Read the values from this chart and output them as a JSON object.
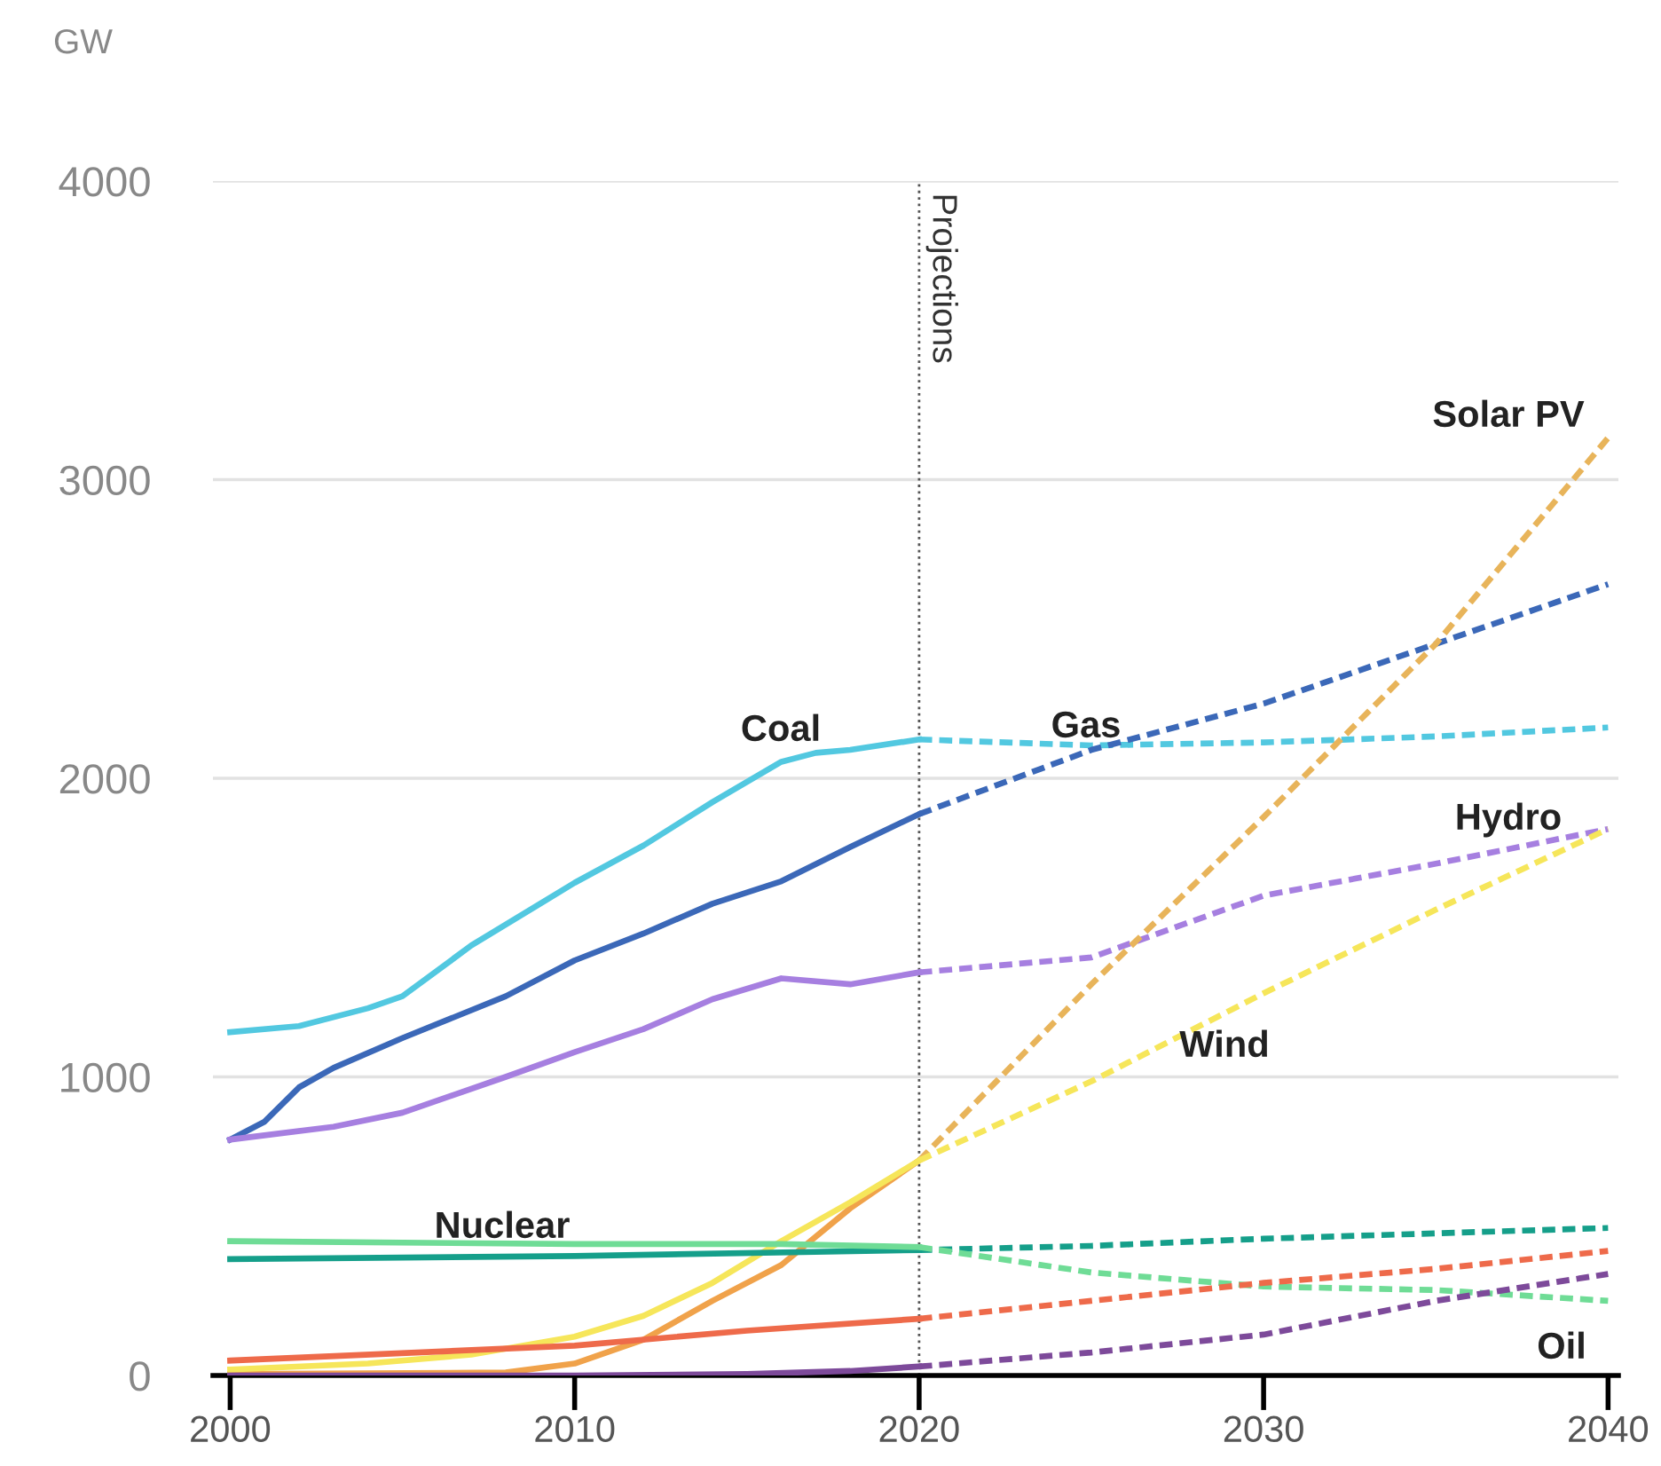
{
  "chart_data": {
    "type": "line",
    "ylabel": "GW",
    "xlim": [
      1999.5,
      2040.3
    ],
    "ylim": [
      0,
      4000
    ],
    "xticks": [
      2000,
      2010,
      2020,
      2030,
      2040
    ],
    "yticks": [
      0,
      1000,
      2000,
      3000,
      4000
    ],
    "grid": "y",
    "legend": false,
    "marker": "none",
    "ref_lines": [
      {
        "axis": "x",
        "value": 2020,
        "label": "Projections",
        "color": "#555555",
        "line_style": "dotted"
      }
    ],
    "series": [
      {
        "name": "Coal",
        "color": "#52c8e0",
        "line_style": "solid",
        "x": [
          2000,
          2002,
          2004,
          2005,
          2007,
          2010,
          2012,
          2014,
          2016,
          2017,
          2018,
          2020
        ],
        "values": [
          1150,
          1170,
          1230,
          1270,
          1440,
          1650,
          1775,
          1920,
          2055,
          2085,
          2095,
          2130
        ]
      },
      {
        "color": "#52c8e0",
        "line_style": "dashed",
        "x": [
          2020,
          2025,
          2030,
          2035,
          2040
        ],
        "values": [
          2130,
          2110,
          2120,
          2140,
          2170
        ]
      },
      {
        "color": "#3b68b8",
        "line_style": "solid",
        "x": [
          2000,
          2001,
          2002,
          2003,
          2005,
          2008,
          2010,
          2012,
          2014,
          2016,
          2018,
          2020
        ],
        "values": [
          790,
          850,
          965,
          1030,
          1130,
          1270,
          1390,
          1480,
          1580,
          1655,
          1770,
          1880
        ]
      },
      {
        "name": "Gas",
        "color": "#3b68b8",
        "line_style": "dashed",
        "x": [
          2020,
          2025,
          2030,
          2035,
          2040
        ],
        "values": [
          1880,
          2095,
          2250,
          2450,
          2650
        ]
      },
      {
        "color": "#a67fe0",
        "line_style": "solid",
        "x": [
          2000,
          2003,
          2005,
          2008,
          2010,
          2012,
          2014,
          2016,
          2018,
          2020
        ],
        "values": [
          790,
          833,
          880,
          1000,
          1083,
          1160,
          1260,
          1330,
          1310,
          1350
        ]
      },
      {
        "name": "Hydro",
        "color": "#a67fe0",
        "line_style": "dashed",
        "x": [
          2020,
          2025,
          2030,
          2035,
          2040
        ],
        "values": [
          1350,
          1400,
          1607,
          1714,
          1830
        ]
      },
      {
        "color": "#f0a24a",
        "line_style": "solid",
        "x": [
          2000,
          2008,
          2010,
          2012,
          2014,
          2016,
          2018,
          2019,
          2020
        ],
        "values": [
          5,
          10,
          40,
          120,
          250,
          370,
          560,
          640,
          720
        ]
      },
      {
        "name": "Solar PV",
        "color": "#e8b45a",
        "line_style": "dashed",
        "x": [
          2020,
          2025,
          2030,
          2035,
          2040
        ],
        "values": [
          720,
          1310,
          1870,
          2450,
          3140
        ]
      },
      {
        "color": "#f6e65a",
        "line_style": "solid",
        "x": [
          2000,
          2004,
          2007,
          2010,
          2012,
          2014,
          2016,
          2018,
          2020
        ],
        "values": [
          20,
          40,
          70,
          130,
          200,
          310,
          450,
          580,
          720
        ]
      },
      {
        "name": "Wind",
        "color": "#f6e65a",
        "line_style": "dashed",
        "x": [
          2020,
          2025,
          2030,
          2035,
          2040
        ],
        "values": [
          720,
          985,
          1280,
          1560,
          1830
        ]
      },
      {
        "name": "Nuclear",
        "color": "#159f8a",
        "line_style": "solid",
        "x": [
          2000,
          2010,
          2020
        ],
        "values": [
          390,
          400,
          420
        ]
      },
      {
        "color": "#159f8a",
        "line_style": "dashed",
        "x": [
          2020,
          2025,
          2030,
          2035,
          2040
        ],
        "values": [
          420,
          434,
          458,
          476,
          494
        ]
      },
      {
        "color": "#6fdc96",
        "line_style": "solid",
        "x": [
          2000,
          2010,
          2016,
          2020
        ],
        "values": [
          450,
          440,
          440,
          430
        ]
      },
      {
        "name": "Oil",
        "color": "#6fdc96",
        "line_style": "dashed",
        "x": [
          2020,
          2025,
          2030,
          2035,
          2040
        ],
        "values": [
          430,
          345,
          298,
          286,
          250
        ]
      },
      {
        "color": "#ee6a4a",
        "line_style": "solid",
        "x": [
          2000,
          2010,
          2015,
          2020
        ],
        "values": [
          50,
          100,
          150,
          190
        ]
      },
      {
        "color": "#ee6a4a",
        "line_style": "dashed",
        "x": [
          2020,
          2025,
          2030,
          2035,
          2040
        ],
        "values": [
          190,
          250,
          310,
          357,
          417
        ]
      },
      {
        "color": "#7d4a9a",
        "line_style": "solid",
        "x": [
          2000,
          2010,
          2015,
          2018,
          2020
        ],
        "values": [
          0,
          0,
          5,
          15,
          30
        ]
      },
      {
        "color": "#7d4a9a",
        "line_style": "dashed",
        "x": [
          2020,
          2025,
          2030,
          2035,
          2040
        ],
        "values": [
          30,
          77,
          137,
          250,
          340
        ]
      }
    ]
  }
}
